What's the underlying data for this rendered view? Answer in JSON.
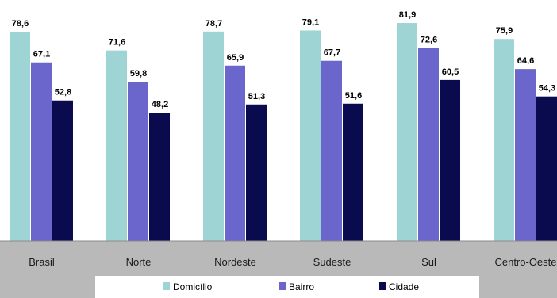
{
  "chart_data": {
    "type": "bar",
    "categories": [
      "Brasil",
      "Norte",
      "Nordeste",
      "Sudeste",
      "Sul",
      "Centro-Oeste"
    ],
    "series": [
      {
        "name": "Domicílio",
        "color": "#9ed4d4",
        "values": [
          78.6,
          71.6,
          78.7,
          79.1,
          81.9,
          75.9
        ]
      },
      {
        "name": "Bairro",
        "color": "#6b66cc",
        "values": [
          67.1,
          59.8,
          65.9,
          67.7,
          72.6,
          64.6
        ]
      },
      {
        "name": "Cidade",
        "color": "#0a0a4e",
        "values": [
          52.8,
          48.2,
          51.3,
          51.6,
          60.5,
          54.3
        ]
      }
    ],
    "value_labels": {
      "Domicílio": [
        "78,6",
        "71,6",
        "78,7",
        "79,1",
        "81,9",
        "75,9"
      ],
      "Bairro": [
        "67,1",
        "59,8",
        "65,9",
        "67,7",
        "72,6",
        "64,6"
      ],
      "Cidade": [
        "52,8",
        "48,2",
        "51,3",
        "51,6",
        "60,5",
        "54,3"
      ]
    },
    "title": "",
    "xlabel": "",
    "ylabel": "",
    "ylim": [
      0,
      84
    ],
    "grid": false,
    "legend_position": "bottom"
  }
}
